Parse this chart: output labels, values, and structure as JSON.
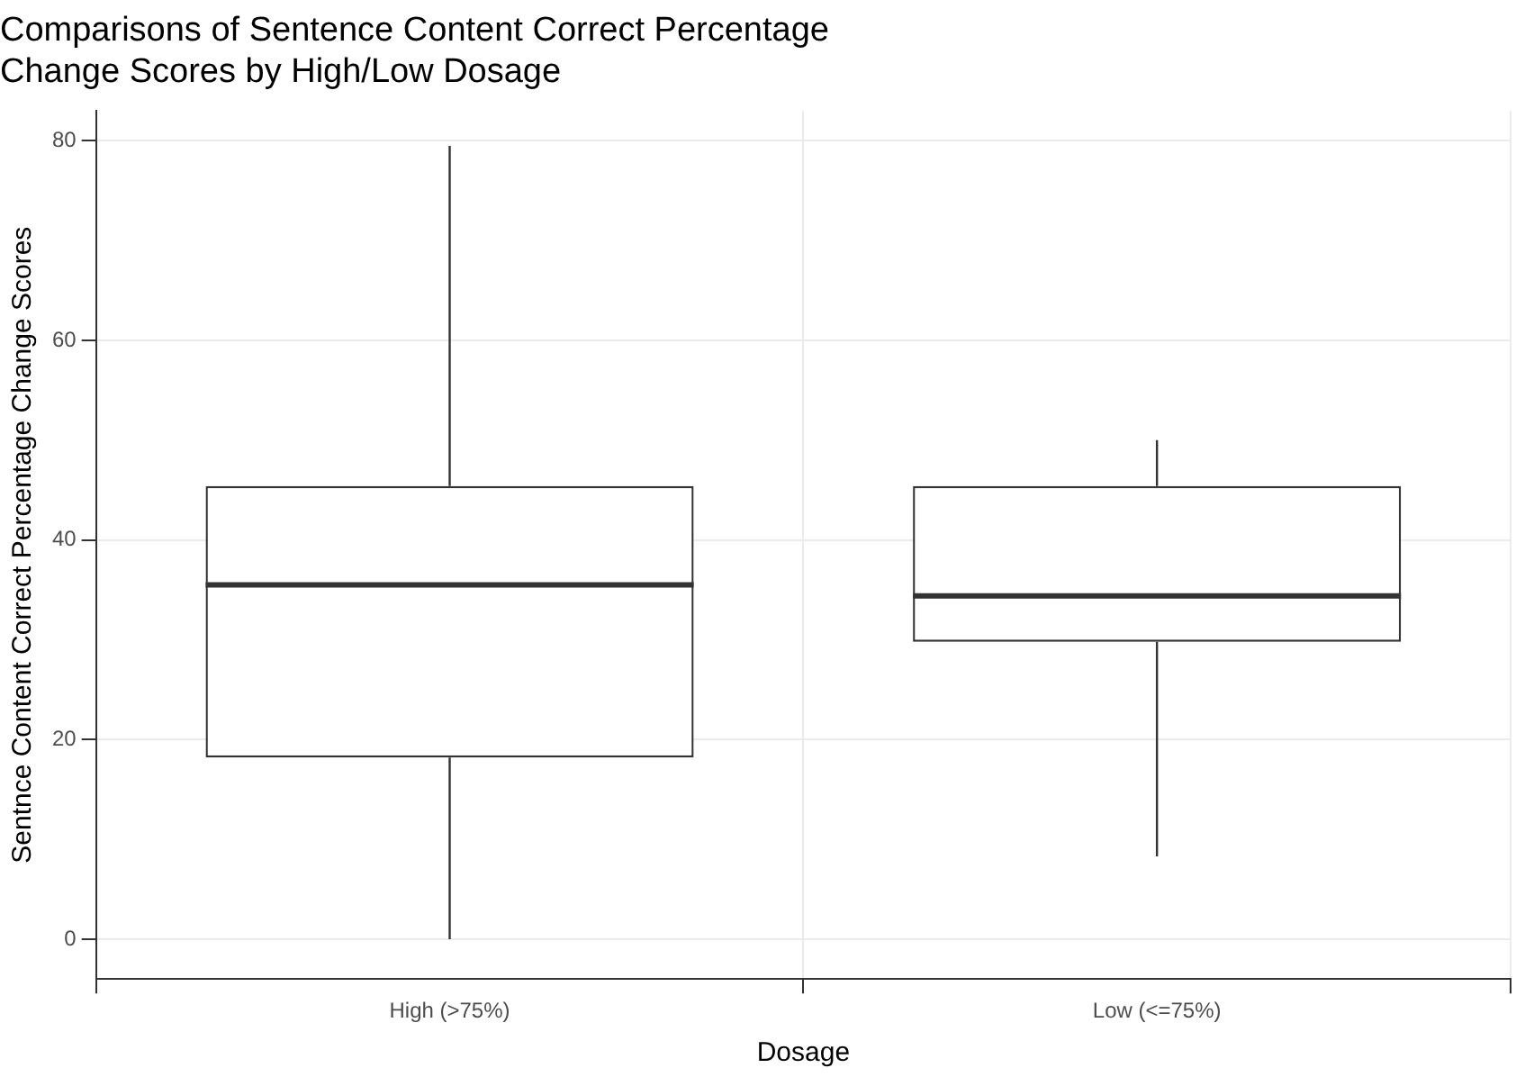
{
  "chart_data": {
    "type": "box",
    "title": "Comparisons of Sentence Content Correct Percentage Change Scores by High/Low Dosage",
    "xlabel": "Dosage",
    "ylabel": "Sentnce Content Correct Percentage Change Scores",
    "categories": [
      "High (>75%)",
      "Low (<=75%)"
    ],
    "boxes": [
      {
        "low": 0,
        "q1": 18.2,
        "median": 35.5,
        "q3": 45.4,
        "high": 79.5
      },
      {
        "low": 8.3,
        "q1": 29.8,
        "median": 34.4,
        "q3": 45.4,
        "high": 50
      }
    ],
    "color": "#333333",
    "ylim": [
      -4,
      83
    ],
    "yticks": [
      0,
      20,
      40,
      60,
      80
    ],
    "grid": true
  }
}
